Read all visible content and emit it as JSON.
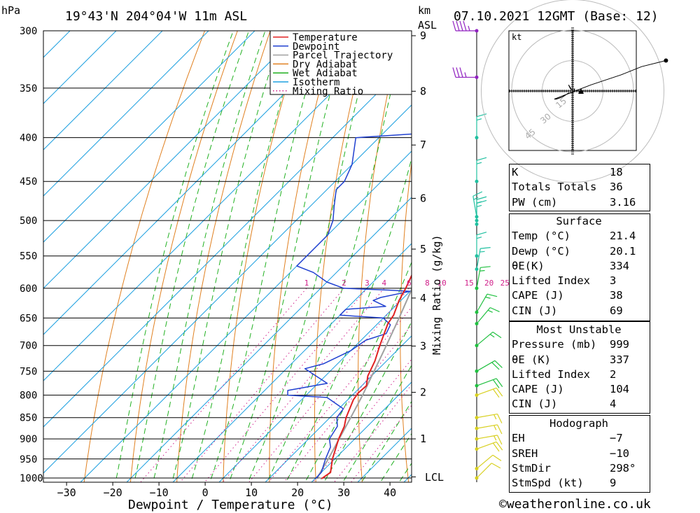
{
  "header": {
    "pressure_unit": "hPa",
    "location": "19°43'N  204°04'W  11m  ASL",
    "height_unit": "km",
    "height_unit_2": "ASL",
    "datetime": "07.10.2021  12GMT  (Base: 12)"
  },
  "footer": {
    "credit": "©weatheronline.co.uk"
  },
  "lcl_label": "LCL",
  "mixing_ratio_axis_label": "Mixing Ratio (g/kg)",
  "colors": {
    "temperature": "#e02020",
    "dewpoint": "#2040d0",
    "parcel": "#a0a0a0",
    "dry_adiabat": "#e08020",
    "wet_adiabat": "#20b020",
    "isotherm": "#1ea0e0",
    "mixing_ratio": "#d0208a"
  },
  "chart_data": {
    "type": "line",
    "title": "19°43'N  204°04'W  11m  ASL",
    "xlabel": "Dewpoint / Temperature (°C)",
    "ylabel": "hPa",
    "pressure_levels": [
      300,
      350,
      400,
      450,
      500,
      550,
      600,
      650,
      700,
      750,
      800,
      850,
      900,
      950,
      1000
    ],
    "x_ticks": [
      -30,
      -20,
      -10,
      0,
      10,
      20,
      30,
      40
    ],
    "x_range": [
      -40,
      40
    ],
    "skew": "45",
    "km_ticks": [
      1,
      2,
      3,
      4,
      5,
      6,
      7,
      8,
      9
    ],
    "km_pressure": [
      900,
      794,
      701,
      616,
      540,
      471,
      408,
      353,
      304
    ],
    "mixing_ratio_values": [
      1,
      2,
      3,
      4,
      6,
      8,
      10,
      15,
      20,
      25
    ],
    "mixing_ratio_label_pressure": 600,
    "lcl_pressure": 997,
    "legend": [
      "Temperature",
      "Dewpoint",
      "Parcel Trajectory",
      "Dry Adiabat",
      "Wet Adiabat",
      "Isotherm",
      "Mixing Ratio"
    ],
    "series": [
      {
        "name": "Temperature",
        "points": [
          [
            1002,
            21.4
          ],
          [
            985,
            22
          ],
          [
            950,
            19.5
          ],
          [
            900,
            16.5
          ],
          [
            870,
            15
          ],
          [
            850,
            13.5
          ],
          [
            810,
            11.2
          ],
          [
            795,
            10.8
          ],
          [
            780,
            11
          ],
          [
            760,
            9.2
          ],
          [
            730,
            7.5
          ],
          [
            700,
            5.2
          ],
          [
            660,
            2.2
          ],
          [
            645,
            1.6
          ],
          [
            620,
            -0.4
          ],
          [
            600,
            -1.6
          ],
          [
            570,
            -3.8
          ],
          [
            550,
            -5.4
          ],
          [
            500,
            -9.8
          ],
          [
            475,
            -12.5
          ],
          [
            450,
            -16
          ],
          [
            420,
            -19.8
          ],
          [
            400,
            -22.8
          ],
          [
            380,
            -27
          ],
          [
            360,
            -30.5
          ],
          [
            340,
            -33.5
          ],
          [
            320,
            -37.5
          ],
          [
            300,
            -41
          ]
        ]
      },
      {
        "name": "Dewpoint",
        "points": [
          [
            1002,
            20.1
          ],
          [
            985,
            20
          ],
          [
            950,
            18
          ],
          [
            920,
            16.5
          ],
          [
            900,
            14.5
          ],
          [
            870,
            13.5
          ],
          [
            850,
            11.5
          ],
          [
            830,
            11
          ],
          [
            805,
            5
          ],
          [
            800,
            -4
          ],
          [
            790,
            -5
          ],
          [
            775,
            2
          ],
          [
            760,
            -2
          ],
          [
            745,
            -6
          ],
          [
            735,
            -3
          ],
          [
            710,
            0
          ],
          [
            690,
            1
          ],
          [
            678,
            4
          ],
          [
            662,
            3
          ],
          [
            650,
            0
          ],
          [
            645,
            -10
          ],
          [
            635,
            -10
          ],
          [
            630,
            -2
          ],
          [
            620,
            -6
          ],
          [
            615,
            -5
          ],
          [
            605,
            0
          ],
          [
            603,
            -5
          ],
          [
            600,
            -15
          ],
          [
            590,
            -20
          ],
          [
            575,
            -25
          ],
          [
            565,
            -30
          ],
          [
            545,
            -30
          ],
          [
            520,
            -30
          ],
          [
            500,
            -32
          ],
          [
            480,
            -35
          ],
          [
            460,
            -38
          ],
          [
            450,
            -38
          ],
          [
            430,
            -40
          ],
          [
            400,
            -45
          ],
          [
            392,
            -22
          ],
          [
            385,
            -35
          ],
          [
            380,
            -37
          ],
          [
            375,
            -28
          ],
          [
            365,
            -18
          ],
          [
            355,
            -10
          ],
          [
            340,
            -8
          ],
          [
            330,
            -7
          ],
          [
            325,
            -16
          ],
          [
            315,
            -30
          ],
          [
            305,
            -32
          ],
          [
            300,
            -32
          ]
        ]
      },
      {
        "name": "Parcel Trajectory",
        "points": [
          [
            1002,
            21.4
          ],
          [
            997,
            20.2
          ],
          [
            950,
            18.6
          ],
          [
            900,
            16.6
          ],
          [
            850,
            14.5
          ],
          [
            800,
            12.2
          ],
          [
            750,
            9.5
          ],
          [
            700,
            6.6
          ],
          [
            650,
            3.4
          ],
          [
            600,
            -0.2
          ],
          [
            550,
            -4.4
          ],
          [
            500,
            -9.2
          ],
          [
            450,
            -14.6
          ],
          [
            400,
            -21.2
          ],
          [
            350,
            -29.6
          ],
          [
            300,
            -40
          ]
        ]
      }
    ],
    "winds": [
      {
        "p": 1000,
        "dir": 45,
        "spd": 10
      },
      {
        "p": 975,
        "dir": 50,
        "spd": 10
      },
      {
        "p": 925,
        "dir": 70,
        "spd": 20
      },
      {
        "p": 900,
        "dir": 80,
        "spd": 15
      },
      {
        "p": 875,
        "dir": 80,
        "spd": 15
      },
      {
        "p": 850,
        "dir": 80,
        "spd": 15
      },
      {
        "p": 800,
        "dir": 70,
        "spd": 20
      },
      {
        "p": 780,
        "dir": 70,
        "spd": 20
      },
      {
        "p": 750,
        "dir": 60,
        "spd": 20
      },
      {
        "p": 700,
        "dir": 50,
        "spd": 15
      },
      {
        "p": 660,
        "dir": 40,
        "spd": 15
      },
      {
        "p": 640,
        "dir": 30,
        "spd": 15
      },
      {
        "p": 600,
        "dir": 10,
        "spd": 15
      },
      {
        "p": 570,
        "dir": 10,
        "spd": 15
      },
      {
        "p": 550,
        "dir": 360,
        "spd": 15
      },
      {
        "p": 505,
        "dir": 360,
        "spd": 15
      },
      {
        "p": 500,
        "dir": 360,
        "spd": 15
      },
      {
        "p": 495,
        "dir": 350,
        "spd": 15
      },
      {
        "p": 450,
        "dir": 360,
        "spd": 15
      },
      {
        "p": 400,
        "dir": 360,
        "spd": 15
      },
      {
        "p": 340,
        "dir": 270,
        "spd": 35
      },
      {
        "p": 300,
        "dir": 270,
        "spd": 45
      }
    ],
    "hodograph": {
      "unit": "kt",
      "ring_labels": [
        "15",
        "30",
        "45"
      ],
      "points": [
        [
          0,
          0
        ],
        [
          -2,
          3
        ],
        [
          -1,
          1
        ],
        [
          1,
          1
        ],
        [
          0,
          -1
        ],
        [
          -2,
          -1
        ],
        [
          -5,
          -3
        ],
        [
          -8,
          -4
        ],
        [
          -9,
          -4
        ],
        [
          9,
          3
        ],
        [
          24,
          8
        ],
        [
          34,
          12
        ],
        [
          46,
          15
        ]
      ]
    }
  },
  "indices": {
    "rows": [
      [
        "K",
        "18"
      ],
      [
        "Totals Totals",
        "36"
      ],
      [
        "PW (cm)",
        "3.16"
      ]
    ]
  },
  "surface": {
    "title": "Surface",
    "rows": [
      [
        "Temp (°C)",
        "21.4"
      ],
      [
        "Dewp (°C)",
        "20.1"
      ],
      [
        "θE(K)",
        "334"
      ],
      [
        "Lifted Index",
        "3"
      ],
      [
        "CAPE (J)",
        "38"
      ],
      [
        "CIN (J)",
        "69"
      ]
    ]
  },
  "most_unstable": {
    "title": "Most Unstable",
    "rows": [
      [
        "Pressure (mb)",
        "999"
      ],
      [
        "θE (K)",
        "337"
      ],
      [
        "Lifted Index",
        "2"
      ],
      [
        "CAPE (J)",
        "104"
      ],
      [
        "CIN (J)",
        "4"
      ]
    ]
  },
  "hodograph_table": {
    "title": "Hodograph",
    "rows": [
      [
        "EH",
        "−7"
      ],
      [
        "SREH",
        "−10"
      ],
      [
        "StmDir",
        "298°"
      ],
      [
        "StmSpd (kt)",
        "9"
      ]
    ]
  }
}
